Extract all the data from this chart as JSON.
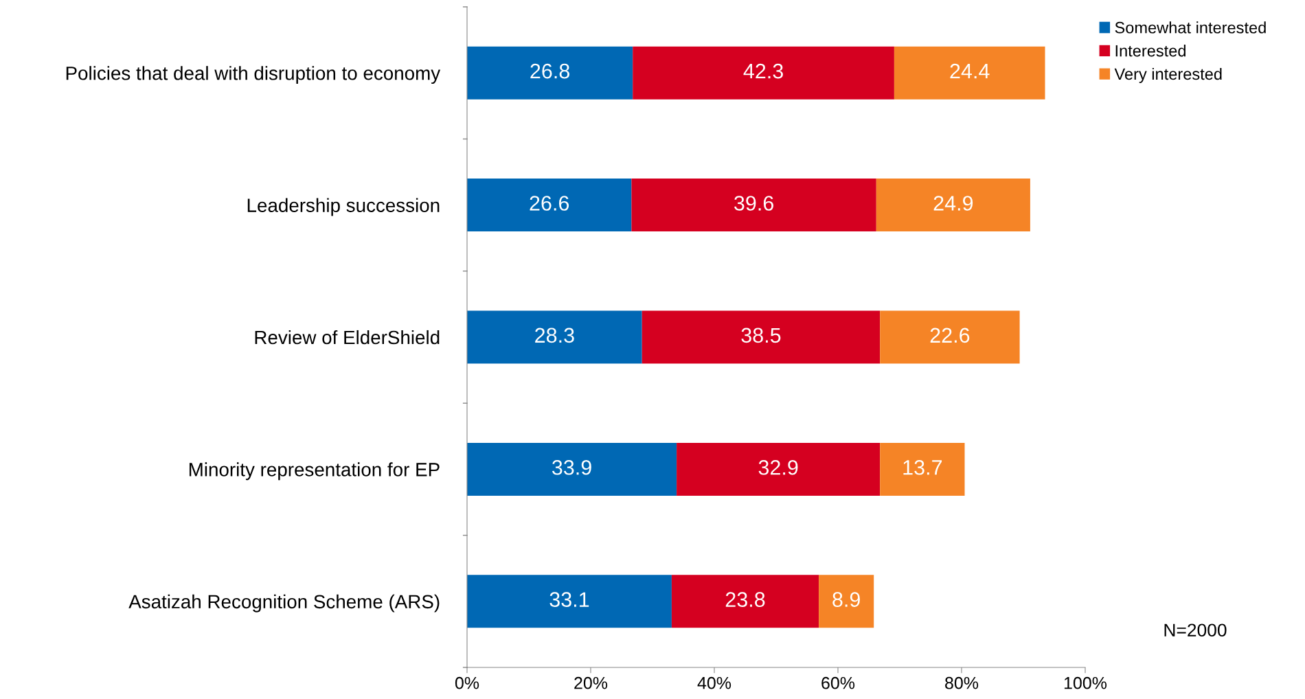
{
  "chart_data": {
    "type": "bar",
    "orientation": "horizontal",
    "stacked": true,
    "categories": [
      "Policies that deal with disruption to economy",
      "Leadership succession",
      "Review of ElderShield",
      "Minority representation for EP",
      "Asatizah Recognition Scheme (ARS)"
    ],
    "series": [
      {
        "name": "Somewhat interested",
        "color": "#0068b4",
        "values": [
          26.8,
          26.6,
          28.3,
          33.9,
          33.1
        ]
      },
      {
        "name": "Interested",
        "color": "#d50020",
        "values": [
          42.3,
          39.6,
          38.5,
          32.9,
          23.8
        ]
      },
      {
        "name": "Very interested",
        "color": "#f58426",
        "values": [
          24.4,
          24.9,
          22.6,
          13.7,
          8.9
        ]
      }
    ],
    "xlim": [
      0,
      100
    ],
    "xticks": [
      {
        "value": 0,
        "label": "0%"
      },
      {
        "value": 20,
        "label": "20%"
      },
      {
        "value": 40,
        "label": "40%"
      },
      {
        "value": 60,
        "label": "60%"
      },
      {
        "value": 80,
        "label": "80%"
      },
      {
        "value": 100,
        "label": "100%"
      }
    ],
    "data_labels": true,
    "grid": false,
    "legend": "top right",
    "annotations": [
      "N=2000"
    ]
  }
}
